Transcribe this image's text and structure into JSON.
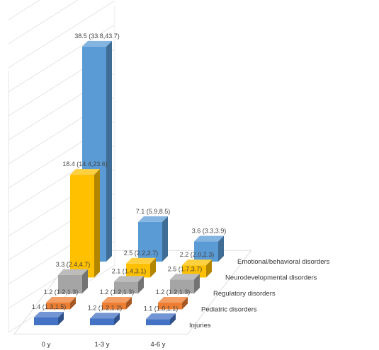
{
  "chart_data": {
    "type": "bar",
    "title": "",
    "xlabel": "",
    "ylabel": "",
    "ylim": [
      0,
      45
    ],
    "grid": true,
    "categories": [
      "0 y",
      "1-3 y",
      "4-6 y"
    ],
    "series": [
      {
        "name": "Injuries",
        "color": "#4472c4",
        "values": [
          1.4,
          1.2,
          1.1
        ],
        "labels": [
          "1.4 (1.3,1.5)",
          "1.2 (1.2,1.2)",
          "1.1 (1.0,1.1)"
        ]
      },
      {
        "name": "Pediatric disorders",
        "color": "#ed7d31",
        "values": [
          1.2,
          1.2,
          1.2
        ],
        "labels": [
          "1.2 (1.2,1.3)",
          "1.2 (1.2,1.3)",
          "1.2 (1.2,1.3)"
        ]
      },
      {
        "name": "Regulatory disorders",
        "color": "#a5a5a5",
        "values": [
          3.3,
          2.1,
          2.5
        ],
        "labels": [
          "3.3 (2.4,4.7)",
          "2.1 (1.4,3.1)",
          "2.5 (1.7,3.7)"
        ]
      },
      {
        "name": "Neurodevelopmental disorders",
        "color": "#ffc000",
        "values": [
          18.4,
          2.5,
          2.2
        ],
        "labels": [
          "18.4 (14.4,23.6)",
          "2.5 (2.2,2.7)",
          "2.2 (2.0,2.3)"
        ]
      },
      {
        "name": "Emotional/behavioral disorders",
        "color": "#5b9bd5",
        "values": [
          38.5,
          7.1,
          3.6
        ],
        "labels": [
          "38.5 (33.8,43.7)",
          "7.1 (5.9,8.5)",
          "3.6 (3.3,3.9)"
        ]
      }
    ]
  }
}
